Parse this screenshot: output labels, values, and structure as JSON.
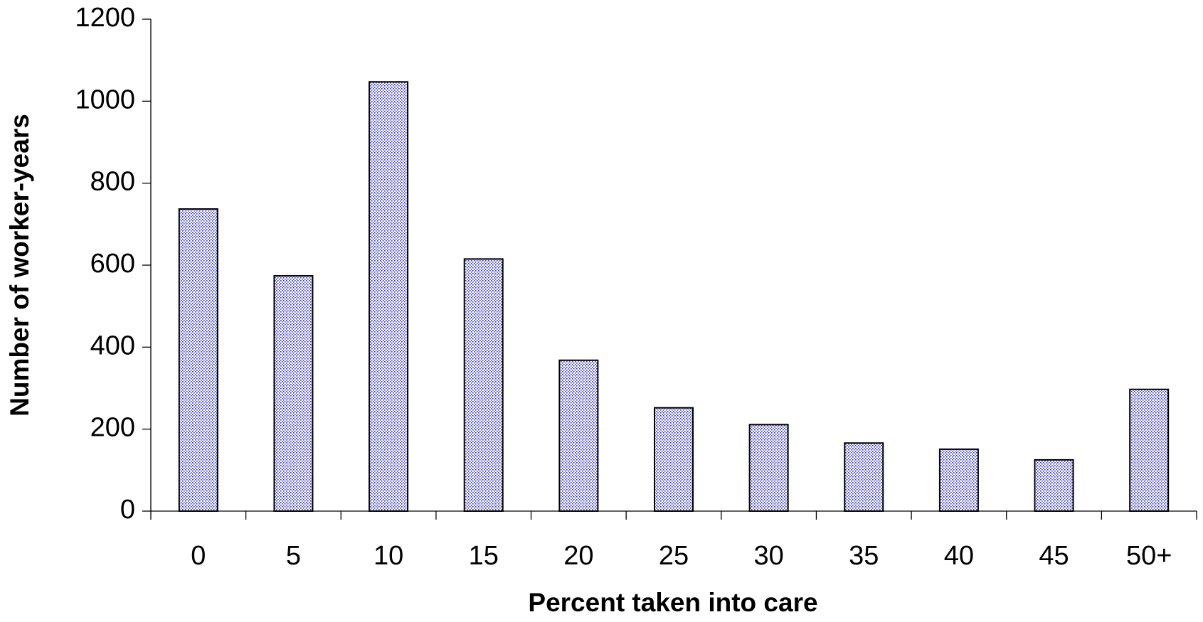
{
  "chart_data": {
    "type": "bar",
    "x_label": "Percent taken into care",
    "y_label": "Number of worker-years",
    "categories": [
      "0",
      "5",
      "10",
      "15",
      "20",
      "25",
      "30",
      "35",
      "40",
      "45",
      "50+"
    ],
    "values": [
      737,
      574,
      1047,
      615,
      368,
      252,
      211,
      166,
      151,
      125,
      297
    ],
    "color": "#2f2fc8",
    "ylim": [
      0,
      1200
    ],
    "yticks": [
      0,
      200,
      400,
      600,
      800,
      1000,
      1200
    ],
    "grid": false
  }
}
